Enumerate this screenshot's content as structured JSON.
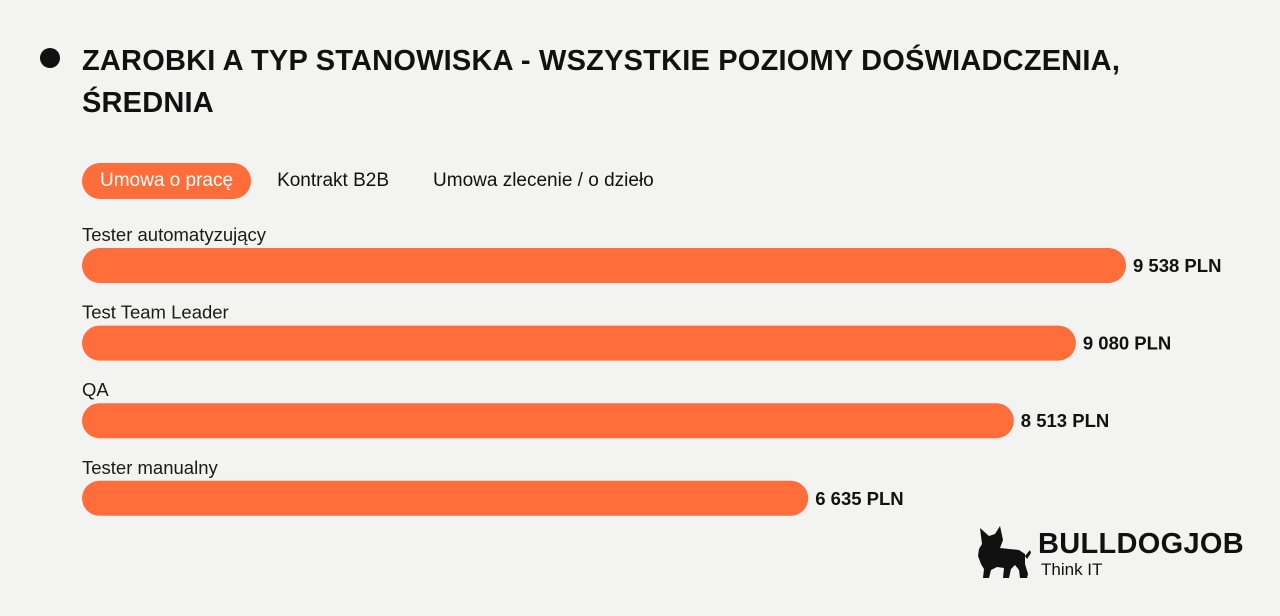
{
  "header": {
    "title": "ZAROBKI A TYP STANOWISKA - WSZYSTKIE POZIOMY DOŚWIADCZENIA, ŚREDNIA"
  },
  "tabs": [
    {
      "label": "Umowa o pracę",
      "active": true
    },
    {
      "label": "Kontrakt B2B",
      "active": false
    },
    {
      "label": "Umowa zlecenie / o dzieło",
      "active": false
    }
  ],
  "chart_data": {
    "type": "bar",
    "orientation": "horizontal",
    "categories": [
      "Tester automatyzujący",
      "Test Team Leader",
      "QA",
      "Tester manualny"
    ],
    "values": [
      9538,
      9080,
      8513,
      6635
    ],
    "value_labels": [
      "9 538 PLN",
      "9 080 PLN",
      "8 513 PLN",
      "6 635 PLN"
    ],
    "bar_color": "#ff6d3a",
    "grid": false
  },
  "logo": {
    "name": "BULLDOGJOB",
    "tagline": "Think IT",
    "icon": "bulldog-icon"
  }
}
